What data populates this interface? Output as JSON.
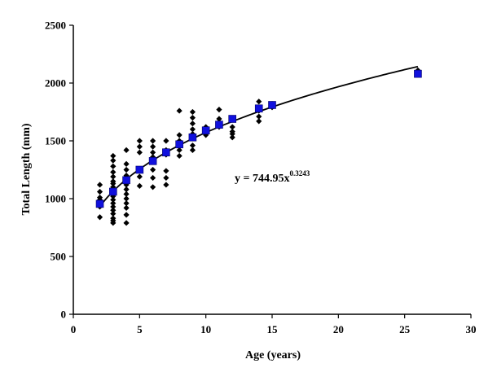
{
  "chart_data": {
    "type": "scatter",
    "title": "",
    "xlabel": "Age (years)",
    "ylabel": "Total Length (mm)",
    "xlim": [
      0,
      30
    ],
    "ylim": [
      0,
      2500
    ],
    "xticks": [
      0,
      5,
      10,
      15,
      20,
      25,
      30
    ],
    "yticks": [
      0,
      500,
      1000,
      1500,
      2000,
      2500
    ],
    "grid": false,
    "legend": "none",
    "colors": {
      "observed": "#000000",
      "mean": "#1010dd",
      "fit": "#000000"
    },
    "series": [
      {
        "marker": "diamond",
        "points": [
          [
            2,
            840
          ],
          [
            2,
            930
          ],
          [
            2,
            960
          ],
          [
            2,
            990
          ],
          [
            2,
            1010
          ],
          [
            2,
            1060
          ],
          [
            2,
            1120
          ],
          [
            3,
            790
          ],
          [
            3,
            810
          ],
          [
            3,
            830
          ],
          [
            3,
            870
          ],
          [
            3,
            900
          ],
          [
            3,
            930
          ],
          [
            3,
            960
          ],
          [
            3,
            990
          ],
          [
            3,
            1020
          ],
          [
            3,
            1050
          ],
          [
            3,
            1080
          ],
          [
            3,
            1100
          ],
          [
            3,
            1130
          ],
          [
            3,
            1150
          ],
          [
            3,
            1190
          ],
          [
            3,
            1230
          ],
          [
            3,
            1280
          ],
          [
            3,
            1330
          ],
          [
            3,
            1370
          ],
          [
            4,
            790
          ],
          [
            4,
            860
          ],
          [
            4,
            920
          ],
          [
            4,
            960
          ],
          [
            4,
            1000
          ],
          [
            4,
            1040
          ],
          [
            4,
            1080
          ],
          [
            4,
            1120
          ],
          [
            4,
            1160
          ],
          [
            4,
            1200
          ],
          [
            4,
            1250
          ],
          [
            4,
            1300
          ],
          [
            4,
            1420
          ],
          [
            5,
            1110
          ],
          [
            5,
            1190
          ],
          [
            5,
            1250
          ],
          [
            5,
            1400
          ],
          [
            5,
            1450
          ],
          [
            5,
            1500
          ],
          [
            6,
            1100
          ],
          [
            6,
            1180
          ],
          [
            6,
            1250
          ],
          [
            6,
            1360
          ],
          [
            6,
            1400
          ],
          [
            6,
            1450
          ],
          [
            6,
            1500
          ],
          [
            7,
            1120
          ],
          [
            7,
            1180
          ],
          [
            7,
            1240
          ],
          [
            7,
            1380
          ],
          [
            7,
            1420
          ],
          [
            7,
            1500
          ],
          [
            8,
            1370
          ],
          [
            8,
            1420
          ],
          [
            8,
            1460
          ],
          [
            8,
            1500
          ],
          [
            8,
            1550
          ],
          [
            8,
            1760
          ],
          [
            9,
            1420
          ],
          [
            9,
            1460
          ],
          [
            9,
            1520
          ],
          [
            9,
            1560
          ],
          [
            9,
            1600
          ],
          [
            9,
            1650
          ],
          [
            9,
            1700
          ],
          [
            9,
            1750
          ],
          [
            10,
            1550
          ],
          [
            10,
            1600
          ],
          [
            10,
            1620
          ],
          [
            11,
            1620
          ],
          [
            11,
            1660
          ],
          [
            11,
            1690
          ],
          [
            11,
            1770
          ],
          [
            12,
            1530
          ],
          [
            12,
            1560
          ],
          [
            12,
            1580
          ],
          [
            12,
            1620
          ],
          [
            12,
            1690
          ],
          [
            14,
            1670
          ],
          [
            14,
            1710
          ],
          [
            14,
            1760
          ],
          [
            14,
            1840
          ],
          [
            15,
            1790
          ],
          [
            15,
            1820
          ],
          [
            26,
            2110
          ]
        ]
      },
      {
        "marker": "square",
        "points": [
          [
            2,
            955
          ],
          [
            3,
            1060
          ],
          [
            4,
            1160
          ],
          [
            5,
            1250
          ],
          [
            6,
            1325
          ],
          [
            7,
            1400
          ],
          [
            8,
            1470
          ],
          [
            9,
            1530
          ],
          [
            10,
            1590
          ],
          [
            11,
            1640
          ],
          [
            12,
            1690
          ],
          [
            14,
            1780
          ],
          [
            15,
            1810
          ],
          [
            26,
            2080
          ]
        ]
      },
      {
        "type": "line",
        "equation": {
          "prefix": "y = 744.95x",
          "exponent": "0.3243"
        },
        "a": 744.95,
        "b": 0.3243,
        "x_range": [
          2,
          26
        ]
      }
    ]
  }
}
